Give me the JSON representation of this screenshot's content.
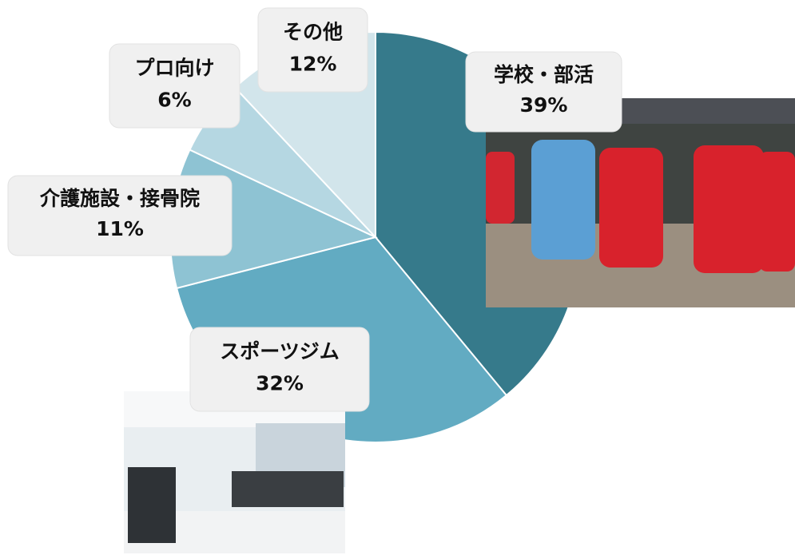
{
  "chart_data": {
    "type": "pie",
    "categories": [
      "学校・部活",
      "スポーツジム",
      "介護施設・接骨院",
      "プロ向け",
      "その他"
    ],
    "values": [
      39,
      32,
      11,
      6,
      12
    ],
    "value_labels": [
      "39%",
      "32%",
      "11%",
      "6%",
      "12%"
    ],
    "colors": [
      "#367a8b",
      "#62abc2",
      "#8ec3d3",
      "#b5d7e2",
      "#d2e5eb"
    ]
  }
}
